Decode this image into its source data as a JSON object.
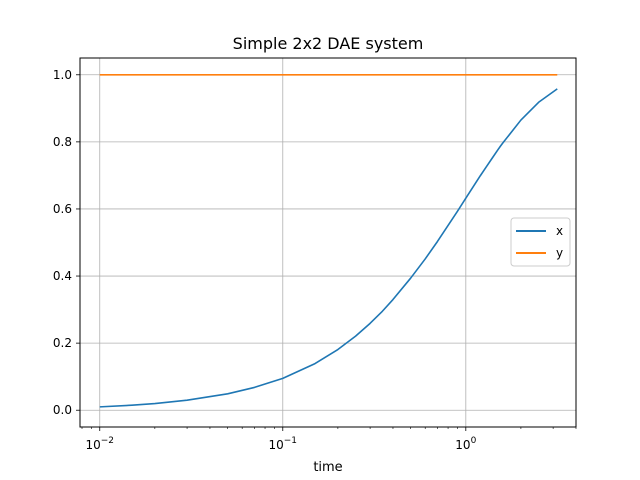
{
  "chart_data": {
    "type": "line",
    "title": "Simple 2x2 DAE system",
    "xlabel": "time",
    "ylabel": "",
    "xscale": "log",
    "xlim": [
      0.0078,
      4.0
    ],
    "ylim": [
      -0.05,
      1.05
    ],
    "grid": true,
    "legend": {
      "placement": "center-right"
    },
    "x_ticks": [
      {
        "value": 0.01,
        "base": "10",
        "exp": "−2"
      },
      {
        "value": 0.1,
        "base": "10",
        "exp": "−1"
      },
      {
        "value": 1,
        "base": "10",
        "exp": "0"
      }
    ],
    "y_ticks": [
      {
        "value": 0.0,
        "label": "0.0"
      },
      {
        "value": 0.2,
        "label": "0.2"
      },
      {
        "value": 0.4,
        "label": "0.4"
      },
      {
        "value": 0.6,
        "label": "0.6"
      },
      {
        "value": 0.8,
        "label": "0.8"
      },
      {
        "value": 1.0,
        "label": "1.0"
      }
    ],
    "series": [
      {
        "name": "x",
        "color": "#1f77b4",
        "x": [
          0.01,
          0.015,
          0.02,
          0.03,
          0.05,
          0.07,
          0.1,
          0.15,
          0.2,
          0.25,
          0.3,
          0.35,
          0.4,
          0.5,
          0.6,
          0.7,
          0.8,
          0.9,
          1.0,
          1.1,
          1.2,
          1.3,
          1.4,
          1.5,
          1.55,
          1.6,
          2.0,
          2.5,
          3.16
        ],
        "values": [
          0.01,
          0.015,
          0.02,
          0.03,
          0.049,
          0.068,
          0.095,
          0.139,
          0.181,
          0.221,
          0.259,
          0.295,
          0.33,
          0.394,
          0.451,
          0.503,
          0.551,
          0.593,
          0.632,
          0.667,
          0.699,
          0.727,
          0.753,
          0.777,
          0.788,
          0.798,
          0.865,
          0.918,
          0.958
        ]
      },
      {
        "name": "y",
        "color": "#ff7f0e",
        "x": [
          0.01,
          0.05,
          0.1,
          0.15,
          0.2,
          0.25,
          0.3,
          0.4,
          0.5,
          0.6,
          0.7,
          0.8,
          0.9,
          1.0,
          1.1,
          1.2,
          1.3,
          1.4,
          1.5,
          1.55,
          1.6,
          2.0,
          2.5,
          3.16
        ],
        "values": [
          1.0,
          1.0,
          1.0,
          1.0,
          1.0,
          1.0,
          1.0,
          1.0,
          1.0,
          1.0,
          1.0,
          1.0,
          1.0,
          1.0,
          1.0,
          1.0,
          1.0,
          1.0,
          1.0,
          1.0,
          1.0,
          1.0,
          1.0,
          1.0
        ]
      }
    ]
  }
}
